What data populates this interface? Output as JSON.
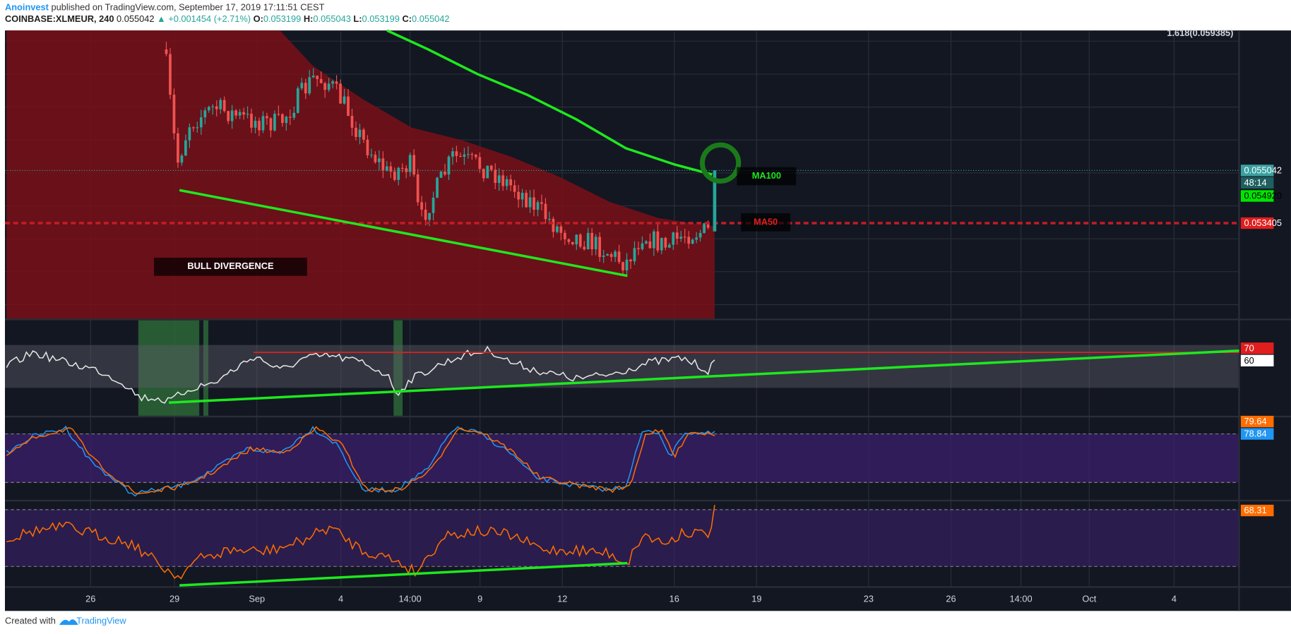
{
  "header": {
    "author": "Anoinvest",
    "published": "published on TradingView.com, September 17, 2019 17:11:51 CEST",
    "symbol": "COINBASE:XLMEUR, 240",
    "last": "0.055042",
    "change": "▲ +0.001454 (+2.71%)",
    "ohlc": [
      {
        "key": "O:",
        "value": "0.053199"
      },
      {
        "key": "H:",
        "value": "0.055043"
      },
      {
        "key": "L:",
        "value": "0.053199"
      },
      {
        "key": "C:",
        "value": "0.055042"
      }
    ]
  },
  "price_axis": {
    "fib": "1.618(0.059385)",
    "last": "0.055042",
    "countdown": "48:14",
    "ma100": "0.054920",
    "ma50": "0.053405",
    "rsi_upper": "70",
    "rsi": "60",
    "stoch_k": "79.64",
    "stoch_d": "78.84",
    "osc": "68.31"
  },
  "time_axis": [
    "26",
    "29",
    "Sep",
    "4",
    "14:00",
    "9",
    "12",
    "16",
    "19",
    "23",
    "26",
    "14:00",
    "Oct",
    "4"
  ],
  "annotations": {
    "divergence": "BULL DIVERGENCE",
    "ma100": "MA100",
    "ma50": "MA50"
  },
  "footer": {
    "created": "Created with",
    "brand": "TradingView"
  }
}
